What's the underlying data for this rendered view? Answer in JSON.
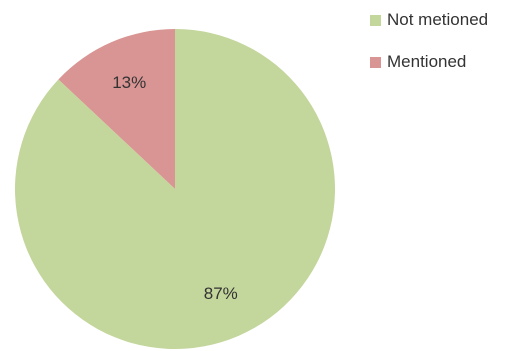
{
  "chart_data": {
    "type": "pie",
    "title": "",
    "slices": [
      {
        "label": "Mentioned",
        "value": 13,
        "display": "13%",
        "color": "#d99594"
      },
      {
        "label": "Not metioned",
        "value": 87,
        "display": "87%",
        "color": "#c3d69b"
      }
    ],
    "legend_position": "top-right",
    "legend": [
      {
        "label": "Not metioned",
        "color": "#c3d69b"
      },
      {
        "label": "Mentioned",
        "color": "#d99594"
      }
    ]
  }
}
